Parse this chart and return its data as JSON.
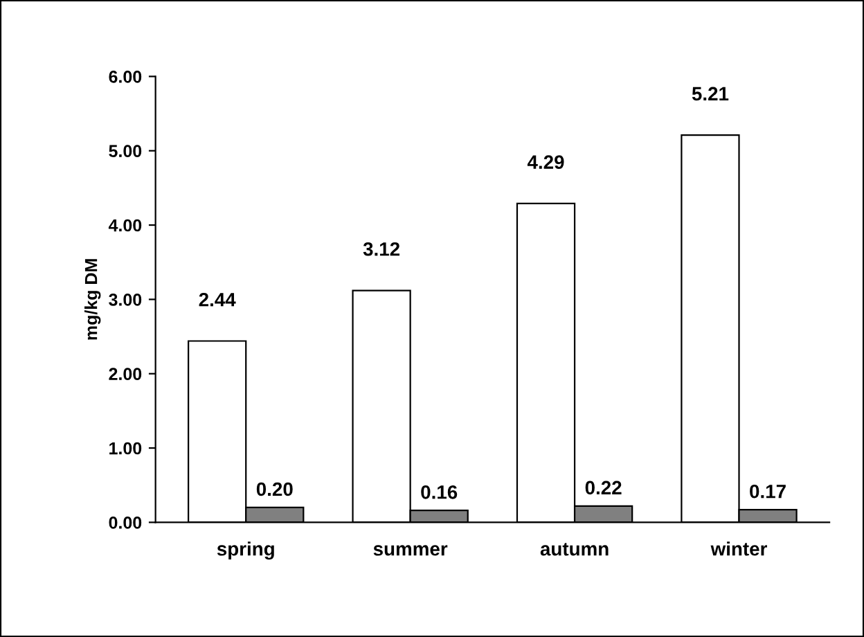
{
  "chart_data": {
    "type": "bar",
    "ylabel": "mg/kg DM",
    "categories": [
      "spring",
      "summer",
      "autumn",
      "winter"
    ],
    "series": [
      {
        "color": "#ffffff",
        "values": [
          2.44,
          3.12,
          4.29,
          5.21
        ],
        "value_labels": [
          "2.44",
          "3.12",
          "4.29",
          "5.21"
        ]
      },
      {
        "color": "#808080",
        "values": [
          0.2,
          0.16,
          0.22,
          0.17
        ],
        "value_labels": [
          "0.20",
          "0.16",
          "0.22",
          "0.17"
        ]
      }
    ],
    "ylim": [
      0,
      6
    ],
    "yticks": [
      {
        "value": 0,
        "label": "0.00"
      },
      {
        "value": 1,
        "label": "1.00"
      },
      {
        "value": 2,
        "label": "2.00"
      },
      {
        "value": 3,
        "label": "3.00"
      },
      {
        "value": 4,
        "label": "4.00"
      },
      {
        "value": 5,
        "label": "5.00"
      },
      {
        "value": 6,
        "label": "6.00"
      }
    ],
    "grid": false,
    "legend": false
  }
}
